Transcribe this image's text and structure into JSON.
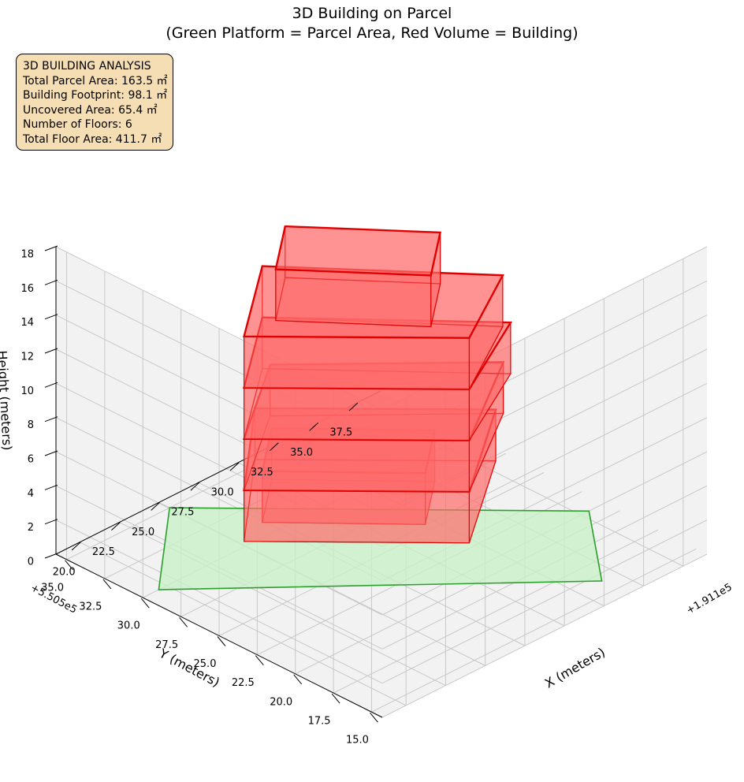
{
  "title_line1": "3D Building on Parcel",
  "title_line2": "(Green Platform = Parcel Area, Red Volume = Building)",
  "stats": {
    "heading": "3D BUILDING ANALYSIS",
    "parcel_area": "Total Parcel Area: 163.5 ㎡",
    "footprint": "Building Footprint: 98.1 ㎡",
    "uncovered": "Uncovered Area: 65.4 ㎡",
    "floors": "Number of Floors: 6",
    "floor_area": "Total Floor Area: 411.7 ㎡"
  },
  "colors": {
    "parcel_fill": "#c8f0c8",
    "parcel_edge": "#2ca02c",
    "building_fill": "#ff6a6a",
    "building_edge": "#e00000",
    "pane": "#f2f2f2",
    "grid": "#c8c8c8"
  },
  "chart_data": {
    "type": "3d-volume",
    "title": "3D Building on Parcel\n(Green Platform = Parcel Area, Red Volume = Building)",
    "axes": {
      "x": {
        "label": "X (meters)",
        "offset": "+1.911e5",
        "ticks": [
          "20.0",
          "22.5",
          "25.0",
          "27.5",
          "30.0",
          "32.5",
          "35.0",
          "37.5"
        ],
        "tick_values": [
          20.0,
          22.5,
          25.0,
          27.5,
          30.0,
          32.5,
          35.0,
          37.5
        ],
        "range": [
          18.5,
          39.0
        ]
      },
      "y": {
        "label": "Y (meters)",
        "offset": "+5.505e5",
        "ticks": [
          "15.0",
          "17.5",
          "20.0",
          "22.5",
          "25.0",
          "27.5",
          "30.0",
          "32.5",
          "35.0"
        ],
        "tick_values": [
          15.0,
          17.5,
          20.0,
          22.5,
          25.0,
          27.5,
          30.0,
          32.5,
          35.0
        ],
        "range": [
          14.3,
          35.7
        ]
      },
      "z": {
        "label": "Height (meters)",
        "ticks": [
          "0",
          "2",
          "4",
          "6",
          "8",
          "10",
          "12",
          "14",
          "16",
          "18"
        ],
        "tick_values": [
          0,
          2,
          4,
          6,
          8,
          10,
          12,
          14,
          16,
          18
        ],
        "range": [
          0,
          18
        ]
      }
    },
    "grid": true,
    "parcel": {
      "name": "Parcel Area",
      "z": 0,
      "corners": [
        [
          19.5,
          30.0
        ],
        [
          25.0,
          35.0
        ],
        [
          38.0,
          21.0
        ],
        [
          34.0,
          16.0
        ]
      ]
    },
    "floors": [
      {
        "level": 1,
        "z_min": 0,
        "z_max": 3,
        "footprint": [
          [
            27.0,
            31.0
          ],
          [
            30.0,
            33.5
          ],
          [
            35.0,
            28.0
          ],
          [
            32.0,
            25.5
          ]
        ]
      },
      {
        "level": 2,
        "z_min": 3,
        "z_max": 6,
        "footprint": [
          [
            22.0,
            27.0
          ],
          [
            27.5,
            32.0
          ],
          [
            35.0,
            24.0
          ],
          [
            29.0,
            19.5
          ]
        ]
      },
      {
        "level": 3,
        "z_min": 6,
        "z_max": 9,
        "footprint": [
          [
            22.0,
            27.0
          ],
          [
            27.5,
            31.0
          ],
          [
            35.0,
            23.5
          ],
          [
            29.0,
            19.5
          ]
        ]
      },
      {
        "level": 4,
        "z_min": 9,
        "z_max": 12,
        "footprint": [
          [
            22.0,
            27.0
          ],
          [
            27.0,
            31.0
          ],
          [
            34.5,
            22.5
          ],
          [
            29.0,
            19.5
          ]
        ]
      },
      {
        "level": 5,
        "z_min": 12,
        "z_max": 15,
        "footprint": [
          [
            22.0,
            27.0
          ],
          [
            27.0,
            31.0
          ],
          [
            34.0,
            22.5
          ],
          [
            29.0,
            19.5
          ]
        ]
      },
      {
        "level": 6,
        "z_min": 15,
        "z_max": 18,
        "footprint": [
          [
            24.0,
            27.0
          ],
          [
            27.0,
            29.5
          ],
          [
            31.5,
            24.0
          ],
          [
            28.5,
            21.5
          ]
        ]
      }
    ]
  }
}
